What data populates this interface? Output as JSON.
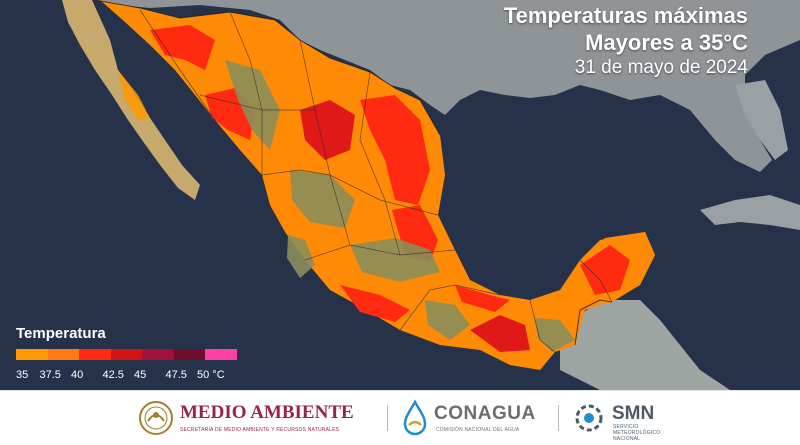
{
  "title": {
    "line1": "Temperaturas máximas",
    "line2": "Mayores a 35°C",
    "date": "31 de mayo de 2024"
  },
  "legend": {
    "title": "Temperatura",
    "ticks": [
      "35",
      "37.5",
      "40",
      "42.5",
      "45",
      "47.5",
      "50 °C"
    ],
    "colors": [
      "#ff9a00",
      "#ff7b12",
      "#ff2a10",
      "#d41414",
      "#a1123a",
      "#6c0e2c",
      "#ff3fa8"
    ]
  },
  "map_colors": {
    "ocean": "#25324a",
    "land_us": "#8e9497",
    "land_central_america": "#9ea5a2",
    "mountains": "#8b8d5a",
    "temp_35": "#ff9a00",
    "temp_40": "#ff2a10",
    "temp_42": "#d41414"
  },
  "footer": {
    "medio_ambiente": {
      "name": "MEDIO AMBIENTE",
      "subtitle": "SECRETARÍA DE MEDIO AMBIENTE Y RECURSOS NATURALES",
      "color": "#9b2247"
    },
    "conagua": {
      "name": "CONAGUA",
      "subtitle": "COMISIÓN NACIONAL DEL AGUA",
      "color": "#6b6e71"
    },
    "smn": {
      "name": "SMN",
      "subtitle_line1": "SERVICIO",
      "subtitle_line2": "METEOROLÓGICO",
      "subtitle_line3": "NACIONAL",
      "color": "#4d5a66"
    }
  }
}
